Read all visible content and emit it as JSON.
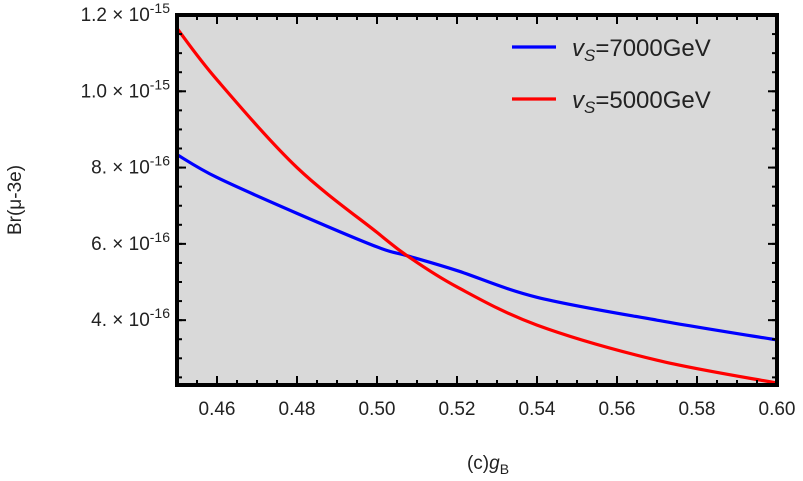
{
  "chart_data": {
    "type": "line",
    "xlabel": {
      "prefix": "(c)",
      "var": "g",
      "sub": "B"
    },
    "ylabel": "Br(μ-3e)",
    "xlim": [
      0.45,
      0.6
    ],
    "ylim": [
      2.3e-16,
      1.2e-15
    ],
    "xticks": [
      0.46,
      0.48,
      0.5,
      0.52,
      0.54,
      0.56,
      0.58,
      0.6
    ],
    "xtick_labels": [
      "0.46",
      "0.48",
      "0.50",
      "0.52",
      "0.54",
      "0.56",
      "0.58",
      "0.60"
    ],
    "yticks": [
      {
        "value": 1.2e-15,
        "mantissa": "1.2",
        "exp": "-15"
      },
      {
        "value": 1e-15,
        "mantissa": "1.0",
        "exp": "-15"
      },
      {
        "value": 8e-16,
        "mantissa": "8.",
        "exp": "-16"
      },
      {
        "value": 6e-16,
        "mantissa": "6.",
        "exp": "-16"
      },
      {
        "value": 4e-16,
        "mantissa": "4.",
        "exp": "-16"
      }
    ],
    "grid": false,
    "background": "#d9d9d9",
    "legend_position": "top-right",
    "x": [
      0.45,
      0.46,
      0.48,
      0.5,
      0.5075,
      0.52,
      0.54,
      0.57,
      0.6
    ],
    "series": [
      {
        "name": {
          "var": "v",
          "sub": "S",
          "rest": "=7000GeV"
        },
        "color": "#0000ff",
        "values": [
          8.34e-16,
          7.74e-16,
          6.8e-16,
          5.92e-16,
          5.69e-16,
          5.3e-16,
          4.6e-16,
          4e-16,
          3.48e-16
        ]
      },
      {
        "name": {
          "var": "v",
          "sub": "S",
          "rest": "=5000GeV"
        },
        "color": "#ff0000",
        "values": [
          1.165e-15,
          1.03e-15,
          8e-16,
          6.3e-16,
          5.69e-16,
          4.87e-16,
          3.87e-16,
          2.95e-16,
          2.35e-16
        ]
      }
    ]
  }
}
